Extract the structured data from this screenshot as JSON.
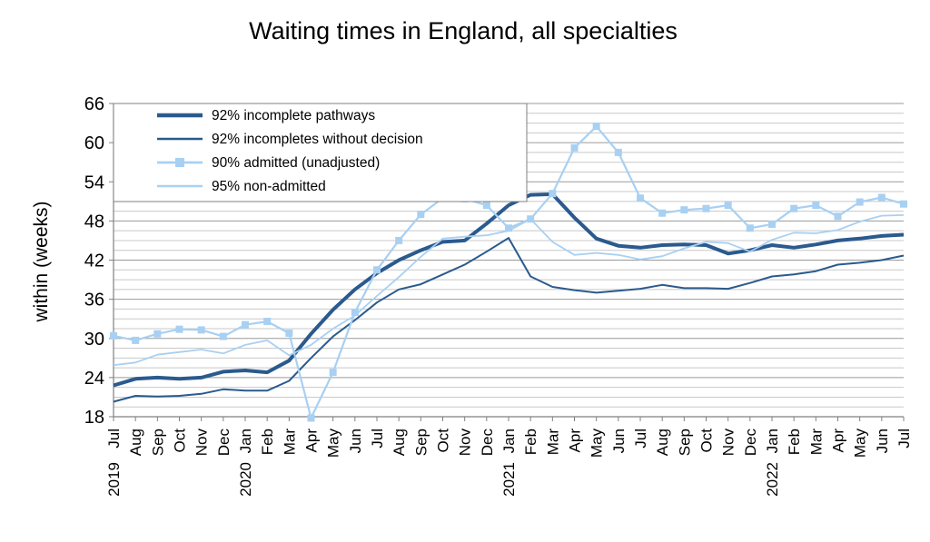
{
  "chart_data": {
    "type": "line",
    "title": "Waiting times in England, all specialties",
    "ylabel": "within  (weeks)",
    "xlabel": "",
    "ylim": [
      18,
      66
    ],
    "yticks": [
      18,
      24,
      30,
      36,
      42,
      48,
      54,
      60,
      66
    ],
    "grid": true,
    "legend_position": "top-left",
    "categories": [
      "Jul",
      "Aug",
      "Sep",
      "Oct",
      "Nov",
      "Dec",
      "Jan",
      "Feb",
      "Mar",
      "Apr",
      "May",
      "Jun",
      "Jul",
      "Aug",
      "Sep",
      "Oct",
      "Nov",
      "Dec",
      "Jan",
      "Feb",
      "Mar",
      "Apr",
      "May",
      "Jun",
      "Jul",
      "Aug",
      "Sep",
      "Oct",
      "Nov",
      "Dec",
      "Jan",
      "Feb",
      "Mar",
      "Apr",
      "May",
      "Jun",
      "Jul"
    ],
    "year_labels": [
      {
        "index": 0,
        "label": "2019"
      },
      {
        "index": 6,
        "label": "2020"
      },
      {
        "index": 18,
        "label": "2021"
      },
      {
        "index": 30,
        "label": "2022"
      }
    ],
    "series": [
      {
        "name": "92% incomplete pathways",
        "color": "#2a5a8e",
        "width": 4,
        "markers": false,
        "values": [
          22.8,
          23.8,
          24.0,
          23.8,
          24.0,
          24.9,
          25.1,
          24.8,
          26.6,
          30.7,
          34.4,
          37.5,
          40.0,
          42.0,
          43.5,
          44.8,
          45.0,
          47.6,
          50.4,
          52.0,
          52.1,
          48.5,
          45.3,
          44.2,
          43.9,
          44.3,
          44.4,
          44.3,
          43.0,
          43.5,
          44.3,
          43.9,
          44.4,
          45.0,
          45.3,
          45.7,
          45.9
        ]
      },
      {
        "name": "92% incompletes without decision",
        "color": "#2a5a8e",
        "width": 2,
        "markers": false,
        "values": [
          20.3,
          21.2,
          21.1,
          21.2,
          21.5,
          22.2,
          22.0,
          22.0,
          23.5,
          27.0,
          30.3,
          32.8,
          35.5,
          37.5,
          38.3,
          39.8,
          41.3,
          43.3,
          45.4,
          39.5,
          37.9,
          37.4,
          37.0,
          37.3,
          37.6,
          38.2,
          37.7,
          37.7,
          37.6,
          38.5,
          39.5,
          39.8,
          40.3,
          41.3,
          41.6,
          42.0,
          42.7
        ]
      },
      {
        "name": "90% admitted (unadjusted)",
        "color": "#a8d0f2",
        "width": 2.2,
        "markers": true,
        "values": [
          30.4,
          29.7,
          30.7,
          31.4,
          31.3,
          30.3,
          32.1,
          32.6,
          30.8,
          17.8,
          24.8,
          34.0,
          40.5,
          45.0,
          49.0,
          51.5,
          51.4,
          50.4,
          46.9,
          48.3,
          52.2,
          59.2,
          62.5,
          58.5,
          51.5,
          49.2,
          49.7,
          49.9,
          50.4,
          46.9,
          47.5,
          49.9,
          50.4,
          48.7,
          50.9,
          51.6,
          50.6
        ]
      },
      {
        "name": "95% non-admitted",
        "color": "#a8d0f2",
        "width": 1.8,
        "markers": false,
        "values": [
          25.9,
          26.3,
          27.5,
          27.9,
          28.3,
          27.7,
          29.0,
          29.7,
          27.4,
          29.0,
          31.5,
          33.5,
          36.5,
          39.4,
          42.5,
          45.3,
          45.6,
          45.8,
          46.5,
          48.3,
          44.8,
          42.8,
          43.1,
          42.8,
          42.1,
          42.6,
          43.8,
          44.8,
          44.6,
          43.3,
          45.1,
          46.2,
          46.1,
          46.6,
          47.9,
          48.8,
          48.9
        ]
      }
    ]
  }
}
